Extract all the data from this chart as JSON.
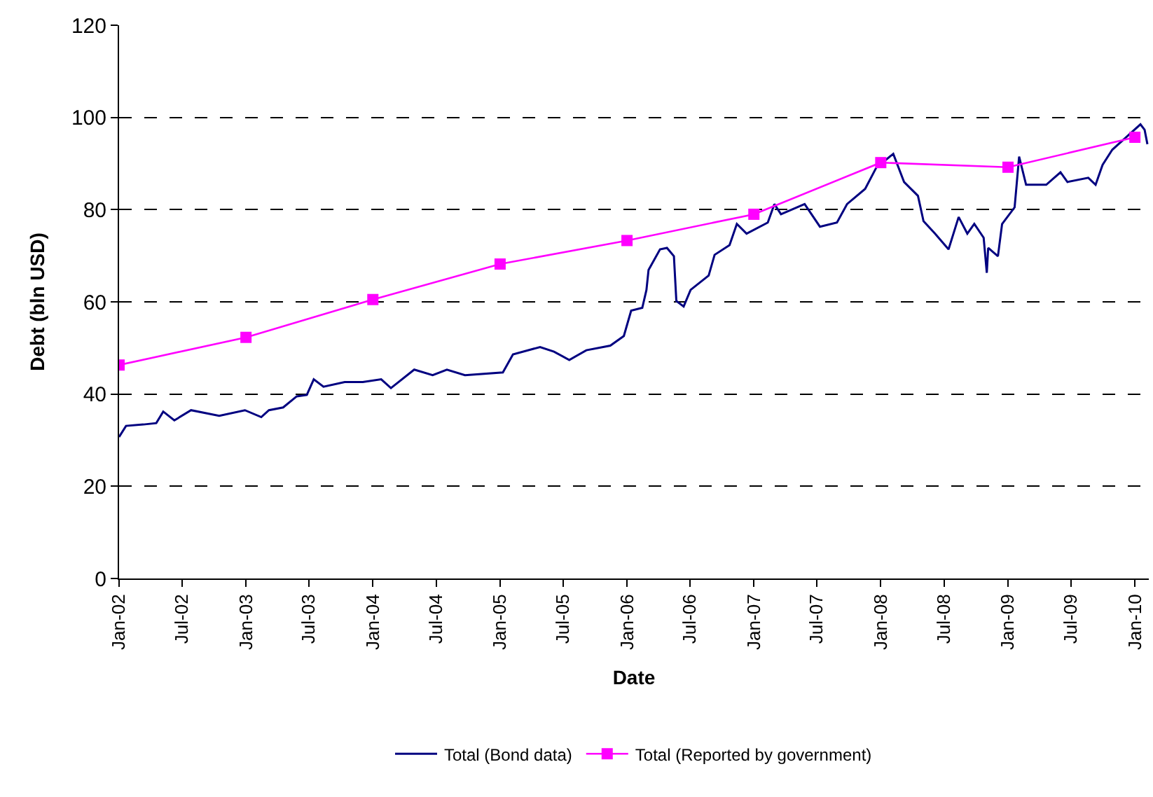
{
  "chart_data": {
    "type": "line",
    "xlabel": "Date",
    "ylabel": "Debt (bln USD)",
    "xlim": [
      "2002-01-01",
      "2010-02-10"
    ],
    "xticks": [
      {
        "value": "2002-01-01",
        "label": "Jan-02"
      },
      {
        "value": "2002-07-01",
        "label": "Jul-02"
      },
      {
        "value": "2003-01-01",
        "label": "Jan-03"
      },
      {
        "value": "2003-07-01",
        "label": "Jul-03"
      },
      {
        "value": "2004-01-01",
        "label": "Jan-04"
      },
      {
        "value": "2004-07-01",
        "label": "Jul-04"
      },
      {
        "value": "2005-01-01",
        "label": "Jan-05"
      },
      {
        "value": "2005-07-01",
        "label": "Jul-05"
      },
      {
        "value": "2006-01-01",
        "label": "Jan-06"
      },
      {
        "value": "2006-07-01",
        "label": "Jul-06"
      },
      {
        "value": "2007-01-01",
        "label": "Jan-07"
      },
      {
        "value": "2007-07-01",
        "label": "Jul-07"
      },
      {
        "value": "2008-01-01",
        "label": "Jan-08"
      },
      {
        "value": "2008-07-01",
        "label": "Jul-08"
      },
      {
        "value": "2009-01-01",
        "label": "Jan-09"
      },
      {
        "value": "2009-07-01",
        "label": "Jul-09"
      },
      {
        "value": "2010-01-01",
        "label": "Jan-10"
      }
    ],
    "ylim": [
      0,
      120
    ],
    "yticks": [
      0,
      20,
      40,
      60,
      80,
      100,
      120
    ],
    "grid": "y",
    "legend": "bottom",
    "series": [
      {
        "name": "Total (Bond data)",
        "color": "#000080",
        "marker": "none",
        "x": [
          "2002-01-01",
          "2002-01-21",
          "2002-03-12",
          "2002-04-18",
          "2002-05-08",
          "2002-06-09",
          "2002-07-27",
          "2002-10-16",
          "2002-12-29",
          "2003-02-14",
          "2003-03-08",
          "2003-04-18",
          "2003-05-27",
          "2003-06-25",
          "2003-07-15",
          "2003-08-12",
          "2003-10-12",
          "2003-12-03",
          "2004-01-25",
          "2004-02-22",
          "2004-04-29",
          "2004-06-21",
          "2004-08-01",
          "2004-09-22",
          "2005-01-09",
          "2005-02-07",
          "2005-04-26",
          "2005-06-05",
          "2005-07-19",
          "2005-09-06",
          "2005-11-14",
          "2005-12-23",
          "2006-01-13",
          "2006-02-14",
          "2006-02-26",
          "2006-03-04",
          "2006-04-06",
          "2006-04-26",
          "2006-05-16",
          "2006-05-23",
          "2006-06-13",
          "2006-07-03",
          "2006-08-24",
          "2006-09-10",
          "2006-10-23",
          "2006-11-13",
          "2006-12-11",
          "2007-02-10",
          "2007-03-01",
          "2007-03-20",
          "2007-05-27",
          "2007-07-10",
          "2007-08-28",
          "2007-09-26",
          "2007-11-17",
          "2007-12-19",
          "2008-02-06",
          "2008-03-08",
          "2008-04-17",
          "2008-05-03",
          "2008-06-05",
          "2008-07-14",
          "2008-08-12",
          "2008-09-06",
          "2008-09-26",
          "2008-10-23",
          "2008-11-01",
          "2008-11-05",
          "2008-12-03",
          "2008-12-15",
          "2009-01-20",
          "2009-02-02",
          "2009-02-22",
          "2009-04-21",
          "2009-06-01",
          "2009-06-21",
          "2009-08-20",
          "2009-09-10",
          "2009-09-30",
          "2009-10-28",
          "2009-12-07",
          "2010-01-17",
          "2010-01-29",
          "2010-02-06"
        ],
        "values": [
          30.7,
          33.1,
          33.4,
          33.7,
          36.2,
          34.3,
          36.5,
          35.3,
          36.5,
          35.0,
          36.5,
          37.1,
          39.5,
          39.8,
          43.2,
          41.6,
          42.6,
          42.6,
          43.2,
          41.3,
          45.3,
          44.1,
          45.3,
          44.1,
          44.7,
          48.6,
          50.2,
          49.2,
          47.4,
          49.5,
          50.5,
          52.6,
          58.1,
          58.7,
          62.6,
          66.9,
          71.4,
          71.7,
          69.9,
          60.2,
          59.0,
          62.6,
          65.7,
          70.2,
          72.3,
          76.9,
          74.8,
          77.2,
          81.2,
          79.0,
          81.2,
          76.3,
          77.2,
          81.2,
          84.5,
          89.1,
          92.1,
          86.0,
          83.0,
          77.5,
          74.8,
          71.4,
          78.4,
          74.8,
          76.9,
          73.9,
          66.3,
          71.7,
          69.9,
          76.9,
          80.5,
          91.5,
          85.4,
          85.4,
          88.1,
          86.0,
          86.9,
          85.4,
          89.7,
          93.0,
          95.7,
          98.5,
          97.3,
          94.2
        ]
      },
      {
        "name": "Total (Reported by government)",
        "color": "#ff00ff",
        "marker": "square",
        "x": [
          "2002-01-01",
          "2003-01-01",
          "2004-01-01",
          "2005-01-01",
          "2006-01-01",
          "2007-01-01",
          "2008-01-01",
          "2009-01-01",
          "2010-01-01"
        ],
        "values": [
          46.3,
          52.3,
          60.5,
          68.2,
          73.3,
          79.0,
          90.2,
          89.2,
          95.7
        ]
      }
    ]
  }
}
